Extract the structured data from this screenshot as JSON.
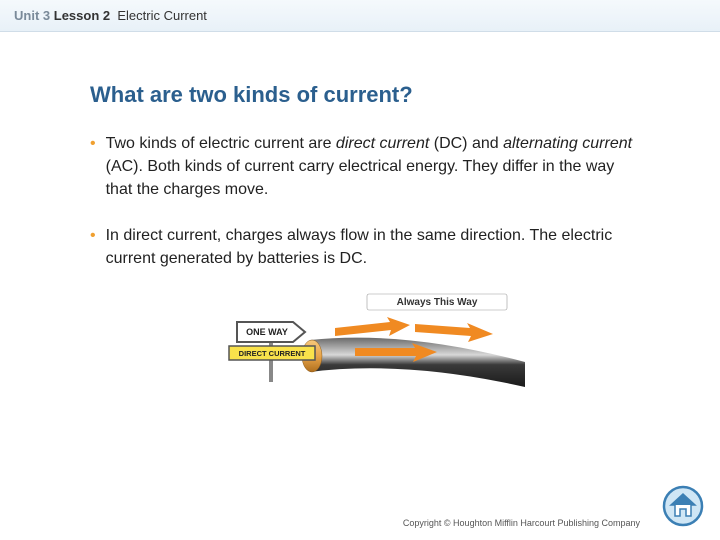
{
  "header": {
    "unit_label": "Unit 3",
    "lesson_label": "Lesson 2",
    "topic": "Electric Current"
  },
  "title": "What are two kinds of current?",
  "bullets": [
    {
      "segments": [
        {
          "text": "Two kinds of electric current are ",
          "italic": false
        },
        {
          "text": "direct current",
          "italic": true
        },
        {
          "text": " (DC) and ",
          "italic": false
        },
        {
          "text": "alternating current",
          "italic": true
        },
        {
          "text": " (AC). Both kinds of current carry electrical energy. They differ in the way that the charges move.",
          "italic": false
        }
      ]
    },
    {
      "segments": [
        {
          "text": "In direct current, charges always flow in the same direction. The electric current generated by batteries is DC.",
          "italic": false
        }
      ]
    }
  ],
  "figure": {
    "sign_top": "ONE WAY",
    "sign_bottom": "DIRECT CURRENT",
    "banner": "Always This Way",
    "colors": {
      "cable_dark": "#2a2a2a",
      "cable_light": "#6a6a6a",
      "cable_tip": "#e8a54a",
      "arrow": "#f08a22",
      "sign_border": "#555555",
      "sign_bottom_bg": "#f9e24b",
      "banner_bg": "#ffffff",
      "banner_text": "#333333"
    }
  },
  "copyright": "Copyright © Houghton Mifflin Harcourt Publishing Company",
  "home_icon_colors": {
    "ring": "#3b7fb4",
    "fill": "#cfe6f5",
    "roof": "#3b7fb4"
  },
  "bullet_color": "#f0a030",
  "title_color": "#2b5f8e"
}
